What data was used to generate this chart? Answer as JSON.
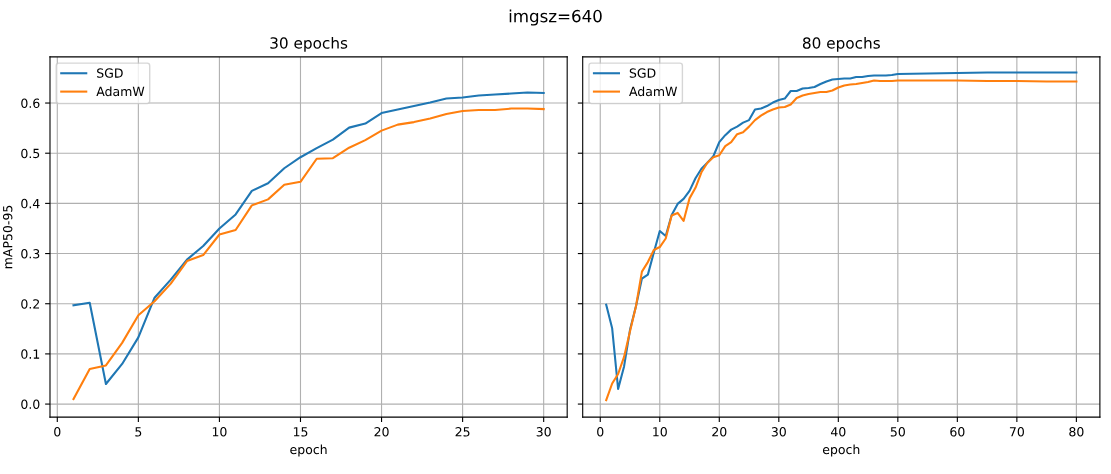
{
  "chart_data": [
    {
      "type": "line",
      "title": "30 epochs",
      "xlabel": "epoch",
      "ylabel": "mAP50-95",
      "annotations": [
        "imgsz=640"
      ],
      "grid": true,
      "legend": "top left",
      "xlim": [
        -0.45,
        31.45
      ],
      "xticks": [
        0,
        5,
        10,
        15,
        20,
        25,
        30
      ],
      "ylim": [
        -0.026,
        0.692
      ],
      "yticks": [
        {
          "value": 0.0,
          "label": "0.0"
        },
        0.1,
        0.2,
        0.3,
        0.4,
        0.5,
        0.6
      ],
      "x": [
        1,
        2,
        3,
        4,
        5,
        6,
        7,
        8,
        9,
        10,
        11,
        12,
        13,
        14,
        15,
        16,
        17,
        18,
        19,
        20,
        21,
        22,
        23,
        24,
        25,
        26,
        27,
        28,
        29,
        30
      ],
      "series": [
        {
          "name": "SGD",
          "color": "#1f77b4",
          "values": [
            0.197,
            0.202,
            0.04,
            0.08,
            0.133,
            0.212,
            0.248,
            0.288,
            0.315,
            0.35,
            0.378,
            0.425,
            0.44,
            0.47,
            0.492,
            0.51,
            0.527,
            0.551,
            0.559,
            0.58,
            0.587,
            0.594,
            0.601,
            0.609,
            0.611,
            0.615,
            0.617,
            0.619,
            0.621,
            0.62
          ]
        },
        {
          "name": "AdamW",
          "color": "#ff7f0e",
          "values": [
            0.01,
            0.07,
            0.077,
            0.122,
            0.177,
            0.205,
            0.24,
            0.285,
            0.297,
            0.338,
            0.347,
            0.396,
            0.408,
            0.437,
            0.443,
            0.489,
            0.49,
            0.511,
            0.526,
            0.545,
            0.557,
            0.562,
            0.569,
            0.578,
            0.584,
            0.586,
            0.586,
            0.589,
            0.589,
            0.588
          ]
        }
      ]
    },
    {
      "type": "line",
      "title": "80 epochs",
      "xlabel": "epoch",
      "grid": true,
      "legend": "top left",
      "tick_labels": "x",
      "xlim": [
        -2.95,
        83.95
      ],
      "xticks": [
        0,
        10,
        20,
        30,
        40,
        50,
        60,
        70,
        80
      ],
      "ylim": [
        -0.026,
        0.692
      ],
      "yticks": [
        {
          "value": 0.0,
          "label": null
        },
        {
          "value": 0.1,
          "label": null
        },
        {
          "value": 0.2,
          "label": null
        },
        {
          "value": 0.3,
          "label": null
        },
        {
          "value": 0.4,
          "label": null
        },
        {
          "value": 0.5,
          "label": null
        },
        {
          "value": 0.6,
          "label": null
        }
      ],
      "x": [
        1,
        2,
        3,
        4,
        5,
        6,
        7,
        8,
        9,
        10,
        11,
        12,
        13,
        14,
        15,
        16,
        17,
        18,
        19,
        20,
        21,
        22,
        23,
        24,
        25,
        26,
        27,
        28,
        29,
        30,
        31,
        32,
        33,
        34,
        35,
        36,
        37,
        38,
        39,
        40,
        41,
        42,
        43,
        44,
        45,
        46,
        47,
        48,
        49,
        50,
        55,
        60,
        65,
        70,
        75,
        80
      ],
      "series": [
        {
          "name": "SGD",
          "color": "#1f77b4",
          "values": [
            0.198,
            0.151,
            0.03,
            0.075,
            0.148,
            0.195,
            0.25,
            0.258,
            0.302,
            0.345,
            0.335,
            0.377,
            0.399,
            0.409,
            0.425,
            0.45,
            0.469,
            0.481,
            0.494,
            0.522,
            0.536,
            0.547,
            0.553,
            0.561,
            0.566,
            0.587,
            0.589,
            0.594,
            0.601,
            0.606,
            0.609,
            0.624,
            0.624,
            0.629,
            0.63,
            0.632,
            0.638,
            0.643,
            0.647,
            0.648,
            0.649,
            0.649,
            0.652,
            0.652,
            0.654,
            0.655,
            0.655,
            0.655,
            0.656,
            0.658,
            0.659,
            0.66,
            0.661,
            0.661,
            0.661,
            0.661
          ]
        },
        {
          "name": "AdamW",
          "color": "#ff7f0e",
          "values": [
            0.008,
            0.041,
            0.06,
            0.094,
            0.145,
            0.195,
            0.264,
            0.283,
            0.307,
            0.313,
            0.33,
            0.376,
            0.381,
            0.365,
            0.41,
            0.431,
            0.462,
            0.481,
            0.492,
            0.496,
            0.514,
            0.522,
            0.538,
            0.542,
            0.553,
            0.566,
            0.575,
            0.582,
            0.587,
            0.591,
            0.592,
            0.597,
            0.61,
            0.615,
            0.618,
            0.62,
            0.622,
            0.622,
            0.625,
            0.631,
            0.635,
            0.637,
            0.638,
            0.64,
            0.642,
            0.645,
            0.644,
            0.644,
            0.644,
            0.645,
            0.645,
            0.645,
            0.644,
            0.644,
            0.643,
            0.643
          ]
        }
      ]
    }
  ]
}
